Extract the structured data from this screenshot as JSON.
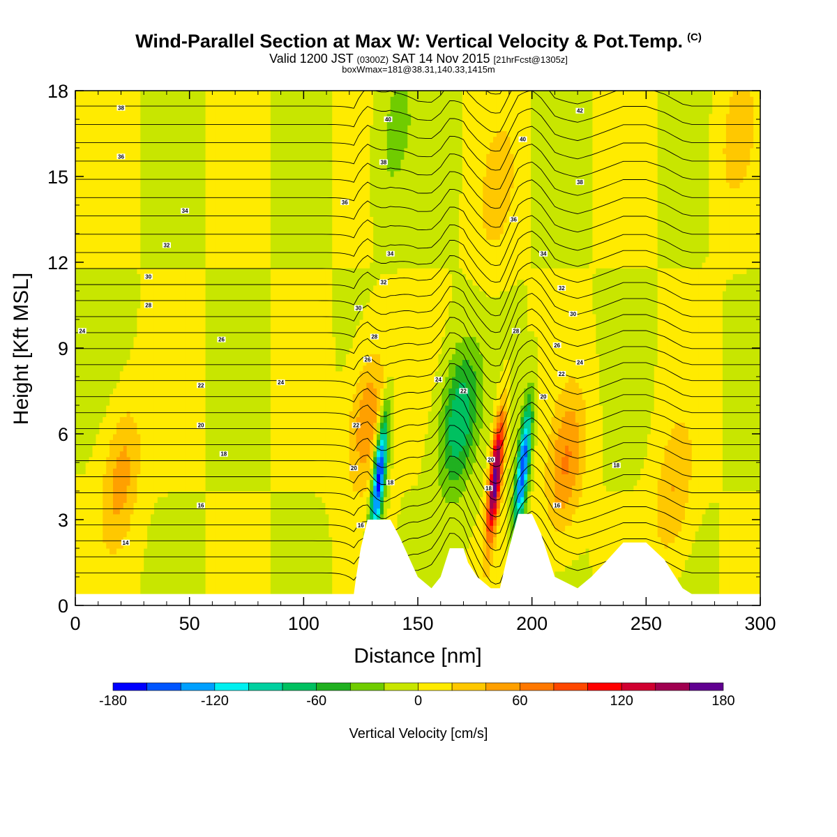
{
  "header": {
    "title": "Wind-Parallel Section at Max W: Vertical Velocity & Pot.Temp.",
    "title_mark": "(C)",
    "valid_prefix": "Valid 1200 JST",
    "valid_utc": "(0300Z)",
    "valid_date": "SAT 14 Nov 2015",
    "forecast": "[21hrFcst@1305z]",
    "box_info": "boxWmax=181@38.31,140.33,1415m"
  },
  "chart_data": {
    "type": "heatmap",
    "xlabel": "Distance [nm]",
    "ylabel": "Height [Kft MSL]",
    "xlim": [
      0,
      300
    ],
    "ylim": [
      0,
      18
    ],
    "x_ticks": [
      0,
      50,
      100,
      150,
      200,
      250,
      300
    ],
    "y_ticks": [
      0,
      3,
      6,
      9,
      12,
      15,
      18
    ],
    "colorbar": {
      "label": "Vertical Velocity [cm/s]",
      "levels": [
        -180,
        -160,
        -140,
        -120,
        -100,
        -80,
        -60,
        -40,
        -20,
        0,
        20,
        40,
        60,
        80,
        100,
        120,
        140,
        160,
        180
      ],
      "tick_labels": [
        -180,
        -120,
        -60,
        0,
        60,
        120,
        180
      ],
      "colors": [
        "#0000ff",
        "#0055ff",
        "#00a0ff",
        "#00f0f0",
        "#00d0a0",
        "#00c060",
        "#20b020",
        "#70cc00",
        "#c8e600",
        "#ffeb00",
        "#ffc800",
        "#ffa000",
        "#ff7800",
        "#ff4800",
        "#ff0000",
        "#d00030",
        "#a00050",
        "#600090"
      ]
    },
    "terrain": [
      [
        0,
        0.4
      ],
      [
        122,
        0.4
      ],
      [
        123,
        1.0
      ],
      [
        125,
        2.0
      ],
      [
        128,
        3.0
      ],
      [
        138,
        3.0
      ],
      [
        142,
        2.4
      ],
      [
        150,
        1.0
      ],
      [
        156,
        0.6
      ],
      [
        160,
        1.0
      ],
      [
        164,
        2.0
      ],
      [
        170,
        2.0
      ],
      [
        172,
        1.5
      ],
      [
        176,
        1.0
      ],
      [
        182,
        0.6
      ],
      [
        186,
        0.6
      ],
      [
        190,
        2.0
      ],
      [
        194,
        3.2
      ],
      [
        200,
        3.2
      ],
      [
        204,
        2.5
      ],
      [
        210,
        1.0
      ],
      [
        220,
        0.6
      ],
      [
        226,
        1.0
      ],
      [
        232,
        1.5
      ],
      [
        240,
        2.2
      ],
      [
        250,
        2.2
      ],
      [
        258,
        1.6
      ],
      [
        266,
        0.6
      ],
      [
        270,
        0.4
      ],
      [
        300,
        0.4
      ]
    ],
    "w_features": [
      {
        "x": 133,
        "z": 4.5,
        "w": -180
      },
      {
        "x": 196,
        "z": 4.8,
        "w": -160
      },
      {
        "x": 184,
        "z": 4.5,
        "w": 181
      },
      {
        "x": 168,
        "z": 6.5,
        "w": -80
      },
      {
        "x": 128,
        "z": 6.5,
        "w": 60
      },
      {
        "x": 215,
        "z": 5.0,
        "w": 60
      },
      {
        "x": 20,
        "z": 4.5,
        "w": 50
      },
      {
        "x": 262,
        "z": 4.0,
        "w": 40
      },
      {
        "x": 185,
        "z": 14.5,
        "w": 30
      },
      {
        "x": 140,
        "z": 16.5,
        "w": -30
      },
      {
        "x": 290,
        "z": 16.5,
        "w": 30
      }
    ],
    "theta_labels": [
      {
        "v": "38",
        "x": 20,
        "z": 17.4
      },
      {
        "v": "36",
        "x": 20,
        "z": 15.7
      },
      {
        "v": "34",
        "x": 48,
        "z": 13.8
      },
      {
        "v": "32",
        "x": 40,
        "z": 12.6
      },
      {
        "v": "30",
        "x": 32,
        "z": 11.5
      },
      {
        "v": "28",
        "x": 32,
        "z": 10.5
      },
      {
        "v": "24",
        "x": 3,
        "z": 9.6
      },
      {
        "v": "26",
        "x": 64,
        "z": 9.3
      },
      {
        "v": "24",
        "x": 90,
        "z": 7.8
      },
      {
        "v": "22",
        "x": 55,
        "z": 7.7
      },
      {
        "v": "20",
        "x": 55,
        "z": 6.3
      },
      {
        "v": "18",
        "x": 65,
        "z": 5.3
      },
      {
        "v": "16",
        "x": 55,
        "z": 3.5
      },
      {
        "v": "14",
        "x": 22,
        "z": 2.2
      },
      {
        "v": "40",
        "x": 137,
        "z": 17.0
      },
      {
        "v": "38",
        "x": 135,
        "z": 15.5
      },
      {
        "v": "36",
        "x": 118,
        "z": 14.1
      },
      {
        "v": "34",
        "x": 138,
        "z": 12.3
      },
      {
        "v": "32",
        "x": 135,
        "z": 11.3
      },
      {
        "v": "30",
        "x": 124,
        "z": 10.4
      },
      {
        "v": "28",
        "x": 131,
        "z": 9.4
      },
      {
        "v": "26",
        "x": 128,
        "z": 8.6
      },
      {
        "v": "22",
        "x": 123,
        "z": 6.3
      },
      {
        "v": "20",
        "x": 122,
        "z": 4.8
      },
      {
        "v": "18",
        "x": 138,
        "z": 4.3
      },
      {
        "v": "16",
        "x": 125,
        "z": 2.8
      },
      {
        "v": "24",
        "x": 159,
        "z": 7.9
      },
      {
        "v": "22",
        "x": 170,
        "z": 7.5
      },
      {
        "v": "20",
        "x": 182,
        "z": 5.1
      },
      {
        "v": "18",
        "x": 181,
        "z": 4.1
      },
      {
        "v": "42",
        "x": 221,
        "z": 17.3
      },
      {
        "v": "40",
        "x": 196,
        "z": 16.3
      },
      {
        "v": "38",
        "x": 221,
        "z": 14.8
      },
      {
        "v": "36",
        "x": 192,
        "z": 13.5
      },
      {
        "v": "34",
        "x": 205,
        "z": 12.3
      },
      {
        "v": "32",
        "x": 213,
        "z": 11.1
      },
      {
        "v": "30",
        "x": 218,
        "z": 10.2
      },
      {
        "v": "28",
        "x": 193,
        "z": 9.6
      },
      {
        "v": "26",
        "x": 211,
        "z": 9.1
      },
      {
        "v": "24",
        "x": 221,
        "z": 8.5
      },
      {
        "v": "22",
        "x": 213,
        "z": 8.1
      },
      {
        "v": "20",
        "x": 205,
        "z": 7.3
      },
      {
        "v": "18",
        "x": 237,
        "z": 4.9
      },
      {
        "v": "16",
        "x": 211,
        "z": 3.5
      }
    ]
  }
}
